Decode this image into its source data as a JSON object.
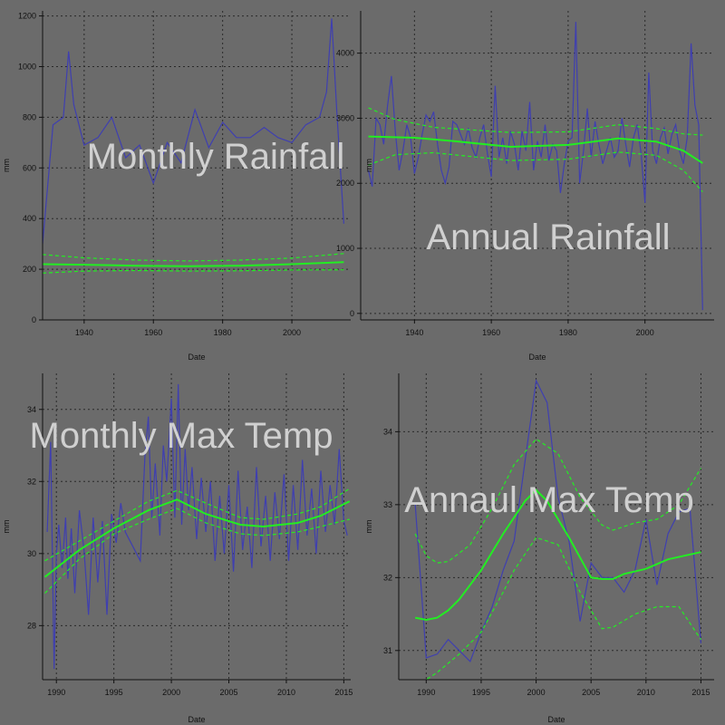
{
  "colors": {
    "background": "#6b6b6b",
    "data_line": "#3f3fb0",
    "fit_line": "#22ee22",
    "title_text": "#d0d0d0",
    "axis": "#111111",
    "grid": "#2a2a2a"
  },
  "chart_data": [
    {
      "type": "line",
      "title": "Monthly Rainfall",
      "xlabel": "Date",
      "ylabel": "mm",
      "xlim": [
        1928,
        2017
      ],
      "ylim": [
        0,
        1220
      ],
      "xticks": [
        1940,
        1960,
        1980,
        2000
      ],
      "yticks": [
        0,
        200,
        400,
        600,
        800,
        1000,
        1200
      ],
      "grid": true,
      "series": [
        {
          "role": "data",
          "x": [
            1928,
            1931,
            1934,
            1935.5,
            1937,
            1940,
            1944,
            1948,
            1952,
            1956,
            1960,
            1964,
            1968,
            1972,
            1976,
            1980,
            1984,
            1988,
            1992,
            1996,
            2000,
            2004,
            2008,
            2010,
            2011.5,
            2013,
            2015
          ],
          "y": [
            300,
            770,
            800,
            1060,
            850,
            690,
            720,
            800,
            640,
            690,
            540,
            700,
            620,
            830,
            680,
            780,
            720,
            720,
            760,
            720,
            700,
            770,
            800,
            900,
            1190,
            820,
            380
          ]
        },
        {
          "role": "fit",
          "x": [
            1928,
            1940,
            1955,
            1970,
            1985,
            2000,
            2015
          ],
          "y": [
            220,
            218,
            214,
            212,
            214,
            220,
            228
          ]
        },
        {
          "role": "upper",
          "x": [
            1928,
            1940,
            1955,
            1970,
            1985,
            2000,
            2015
          ],
          "y": [
            258,
            245,
            236,
            233,
            236,
            244,
            262
          ]
        },
        {
          "role": "lower",
          "x": [
            1928,
            1940,
            1955,
            1970,
            1985,
            2000,
            2015
          ],
          "y": [
            185,
            193,
            195,
            193,
            194,
            197,
            198
          ]
        }
      ]
    },
    {
      "type": "line",
      "title": "Annual Rainfall",
      "xlabel": "Date",
      "ylabel": "mm",
      "xlim": [
        1926,
        2018
      ],
      "ylim": [
        -100,
        4650
      ],
      "xticks": [
        1940,
        1960,
        1980,
        2000
      ],
      "yticks": [
        0,
        1000,
        2000,
        3000,
        4000
      ],
      "grid": true,
      "series": [
        {
          "role": "data",
          "x": [
            1928,
            1929,
            1930,
            1931,
            1932,
            1933,
            1934,
            1935,
            1936,
            1937,
            1938,
            1939,
            1940,
            1941,
            1942,
            1943,
            1944,
            1945,
            1946,
            1947,
            1948,
            1949,
            1950,
            1951,
            1952,
            1953,
            1954,
            1955,
            1956,
            1957,
            1958,
            1959,
            1960,
            1961,
            1962,
            1963,
            1964,
            1965,
            1966,
            1967,
            1968,
            1969,
            1970,
            1971,
            1972,
            1973,
            1974,
            1975,
            1976,
            1977,
            1978,
            1979,
            1980,
            1981,
            1982,
            1983,
            1984,
            1985,
            1986,
            1987,
            1988,
            1989,
            1990,
            1991,
            1992,
            1993,
            1994,
            1995,
            1996,
            1997,
            1998,
            1999,
            2000,
            2001,
            2002,
            2003,
            2004,
            2005,
            2006,
            2007,
            2008,
            2009,
            2010,
            2011,
            2012,
            2013,
            2014,
            2015
          ],
          "y": [
            2200,
            1950,
            3000,
            2900,
            2600,
            3200,
            3650,
            2800,
            2200,
            2500,
            2900,
            2700,
            2150,
            2400,
            2750,
            3050,
            2950,
            3100,
            2600,
            2200,
            2000,
            2250,
            2950,
            2900,
            2750,
            2600,
            2850,
            2550,
            2400,
            2700,
            2900,
            2450,
            2100,
            3500,
            2400,
            2700,
            2300,
            2800,
            2600,
            2200,
            2800,
            2500,
            3250,
            2200,
            2650,
            2400,
            2900,
            2350,
            2600,
            2500,
            1850,
            2300,
            2650,
            2700,
            4480,
            2000,
            2500,
            3150,
            2400,
            2950,
            2600,
            2300,
            2500,
            2700,
            2400,
            2500,
            3000,
            2600,
            2250,
            2700,
            2900,
            2450,
            1700,
            3700,
            2500,
            2300,
            2700,
            2850,
            2450,
            2750,
            2900,
            2500,
            2300,
            2700,
            4150,
            3200,
            2900,
            50
          ]
        },
        {
          "role": "fit",
          "x": [
            1928,
            1940,
            1950,
            1965,
            1980,
            1993,
            2003,
            2010,
            2015
          ],
          "y": [
            2720,
            2700,
            2650,
            2560,
            2590,
            2690,
            2640,
            2500,
            2310
          ]
        },
        {
          "role": "upper",
          "x": [
            1928,
            1935,
            1945,
            1965,
            1980,
            1993,
            2003,
            2010,
            2015
          ],
          "y": [
            3160,
            2980,
            2860,
            2780,
            2790,
            2900,
            2840,
            2760,
            2740
          ]
        },
        {
          "role": "lower",
          "x": [
            1928,
            1935,
            1945,
            1965,
            1980,
            1993,
            2003,
            2010,
            2015
          ],
          "y": [
            2280,
            2440,
            2470,
            2350,
            2370,
            2480,
            2430,
            2200,
            1870
          ]
        }
      ]
    },
    {
      "type": "line",
      "title": "Monthly Max Temp",
      "xlabel": "Date",
      "ylabel": "mm",
      "xlim": [
        1988.8,
        2015.6
      ],
      "ylim": [
        26.5,
        35.0
      ],
      "xticks": [
        1990,
        1995,
        2000,
        2005,
        2010,
        2015
      ],
      "yticks": [
        28,
        30,
        32,
        34
      ],
      "grid": true,
      "series": [
        {
          "role": "data",
          "x": [
            1989.2,
            1989.5,
            1989.8,
            1990.0,
            1990.2,
            1990.5,
            1990.8,
            1991.0,
            1991.3,
            1991.6,
            1992.0,
            1992.4,
            1992.8,
            1993.2,
            1993.6,
            1994.0,
            1994.4,
            1994.8,
            1995.2,
            1995.6,
            1996.0,
            1997.3,
            1997.7,
            1998.0,
            1998.3,
            1998.6,
            1999.0,
            1999.3,
            1999.6,
            2000.0,
            2000.3,
            2000.6,
            2000.9,
            2001.2,
            2001.5,
            2001.8,
            2002.2,
            2002.6,
            2003.0,
            2003.4,
            2003.8,
            2004.2,
            2004.6,
            2005.0,
            2005.4,
            2005.8,
            2006.2,
            2006.6,
            2007.0,
            2007.4,
            2007.8,
            2008.2,
            2008.6,
            2009.0,
            2009.4,
            2009.8,
            2010.2,
            2010.6,
            2011.0,
            2011.4,
            2011.8,
            2012.2,
            2012.6,
            2013.0,
            2013.4,
            2013.8,
            2014.2,
            2014.6,
            2015.0,
            2015.3
          ],
          "y": [
            30.6,
            33.1,
            26.8,
            30.0,
            30.8,
            29.6,
            31.0,
            29.3,
            30.7,
            28.9,
            31.2,
            30.1,
            28.3,
            31.0,
            29.2,
            30.9,
            28.3,
            31.1,
            30.3,
            31.4,
            30.6,
            29.8,
            32.7,
            33.8,
            31.0,
            32.5,
            30.5,
            33.0,
            32.0,
            34.3,
            31.0,
            34.7,
            30.8,
            32.9,
            31.2,
            32.4,
            30.4,
            32.1,
            30.6,
            32.0,
            29.8,
            31.6,
            30.0,
            31.9,
            29.5,
            32.3,
            30.1,
            31.3,
            29.6,
            32.4,
            30.2,
            31.6,
            29.8,
            31.7,
            30.4,
            32.2,
            29.8,
            31.9,
            30.1,
            32.6,
            30.5,
            31.8,
            30.0,
            32.3,
            30.6,
            31.9,
            30.8,
            32.9,
            30.9,
            30.5
          ]
        },
        {
          "role": "fit",
          "x": [
            1989,
            1992,
            1995,
            1998,
            2000.5,
            2003,
            2006,
            2008,
            2011,
            2013,
            2015.5
          ],
          "y": [
            29.35,
            30.1,
            30.7,
            31.2,
            31.5,
            31.1,
            30.8,
            30.75,
            30.85,
            31.05,
            31.45
          ]
        },
        {
          "role": "upper",
          "x": [
            1989,
            1992,
            1995,
            1998,
            2000.5,
            2003,
            2006,
            2008,
            2011,
            2013,
            2015.5
          ],
          "y": [
            29.8,
            30.35,
            30.9,
            31.45,
            31.75,
            31.4,
            31.0,
            30.95,
            31.1,
            31.3,
            31.8
          ]
        },
        {
          "role": "lower",
          "x": [
            1989,
            1992,
            1995,
            1998,
            2000.5,
            2003,
            2006,
            2008,
            2011,
            2013,
            2015.5
          ],
          "y": [
            28.9,
            29.85,
            30.55,
            30.95,
            31.25,
            30.85,
            30.55,
            30.5,
            30.6,
            30.75,
            30.95
          ]
        }
      ]
    },
    {
      "type": "line",
      "title": "Annaul Max Temp",
      "xlabel": "Date",
      "ylabel": "mm",
      "xlim": [
        1987.5,
        2016.2
      ],
      "ylim": [
        30.6,
        34.8
      ],
      "xticks": [
        1990,
        1995,
        2000,
        2005,
        2010,
        2015
      ],
      "yticks": [
        31,
        32,
        33,
        34
      ],
      "grid": true,
      "series": [
        {
          "role": "data",
          "x": [
            1989,
            1990,
            1991,
            1992,
            1993,
            1994,
            1995,
            1996,
            1997,
            1998,
            1999,
            2000,
            2001,
            2002,
            2003,
            2004,
            2005,
            2006,
            2007,
            2008,
            2009,
            2010,
            2011,
            2012,
            2013,
            2014,
            2015
          ],
          "y": [
            33.0,
            30.9,
            30.95,
            31.15,
            31.0,
            30.85,
            31.25,
            31.6,
            32.1,
            32.5,
            33.6,
            34.7,
            34.4,
            33.1,
            32.5,
            31.4,
            32.2,
            32.0,
            32.0,
            31.8,
            32.1,
            32.8,
            31.9,
            32.6,
            32.9,
            32.95,
            31.1
          ]
        },
        {
          "role": "fit",
          "x": [
            1989,
            1990,
            1991,
            1992,
            1993,
            1995,
            1997,
            1999,
            2000,
            2001,
            2003,
            2005,
            2006,
            2007,
            2008,
            2010,
            2012,
            2015
          ],
          "y": [
            31.45,
            31.42,
            31.45,
            31.55,
            31.7,
            32.1,
            32.6,
            33.05,
            33.2,
            33.05,
            32.55,
            32.0,
            31.98,
            31.98,
            32.05,
            32.12,
            32.25,
            32.35
          ]
        },
        {
          "role": "upper",
          "x": [
            1989,
            1990,
            1991,
            1992,
            1994,
            1996,
            1998,
            2000,
            2002,
            2004,
            2006,
            2007,
            2009,
            2011,
            2013,
            2015
          ],
          "y": [
            32.6,
            32.3,
            32.2,
            32.22,
            32.45,
            32.95,
            33.55,
            33.9,
            33.7,
            33.1,
            32.72,
            32.65,
            32.75,
            32.8,
            33.0,
            33.5
          ]
        },
        {
          "role": "lower",
          "x": [
            1989,
            1990,
            1991,
            1993,
            1995,
            1997,
            1998,
            2000,
            2002,
            2004,
            2006,
            2007,
            2009,
            2011,
            2013,
            2015
          ],
          "y": [
            30.55,
            30.6,
            30.7,
            30.95,
            31.25,
            31.8,
            32.1,
            32.55,
            32.45,
            31.8,
            31.3,
            31.32,
            31.5,
            31.6,
            31.6,
            31.15
          ]
        }
      ]
    }
  ]
}
